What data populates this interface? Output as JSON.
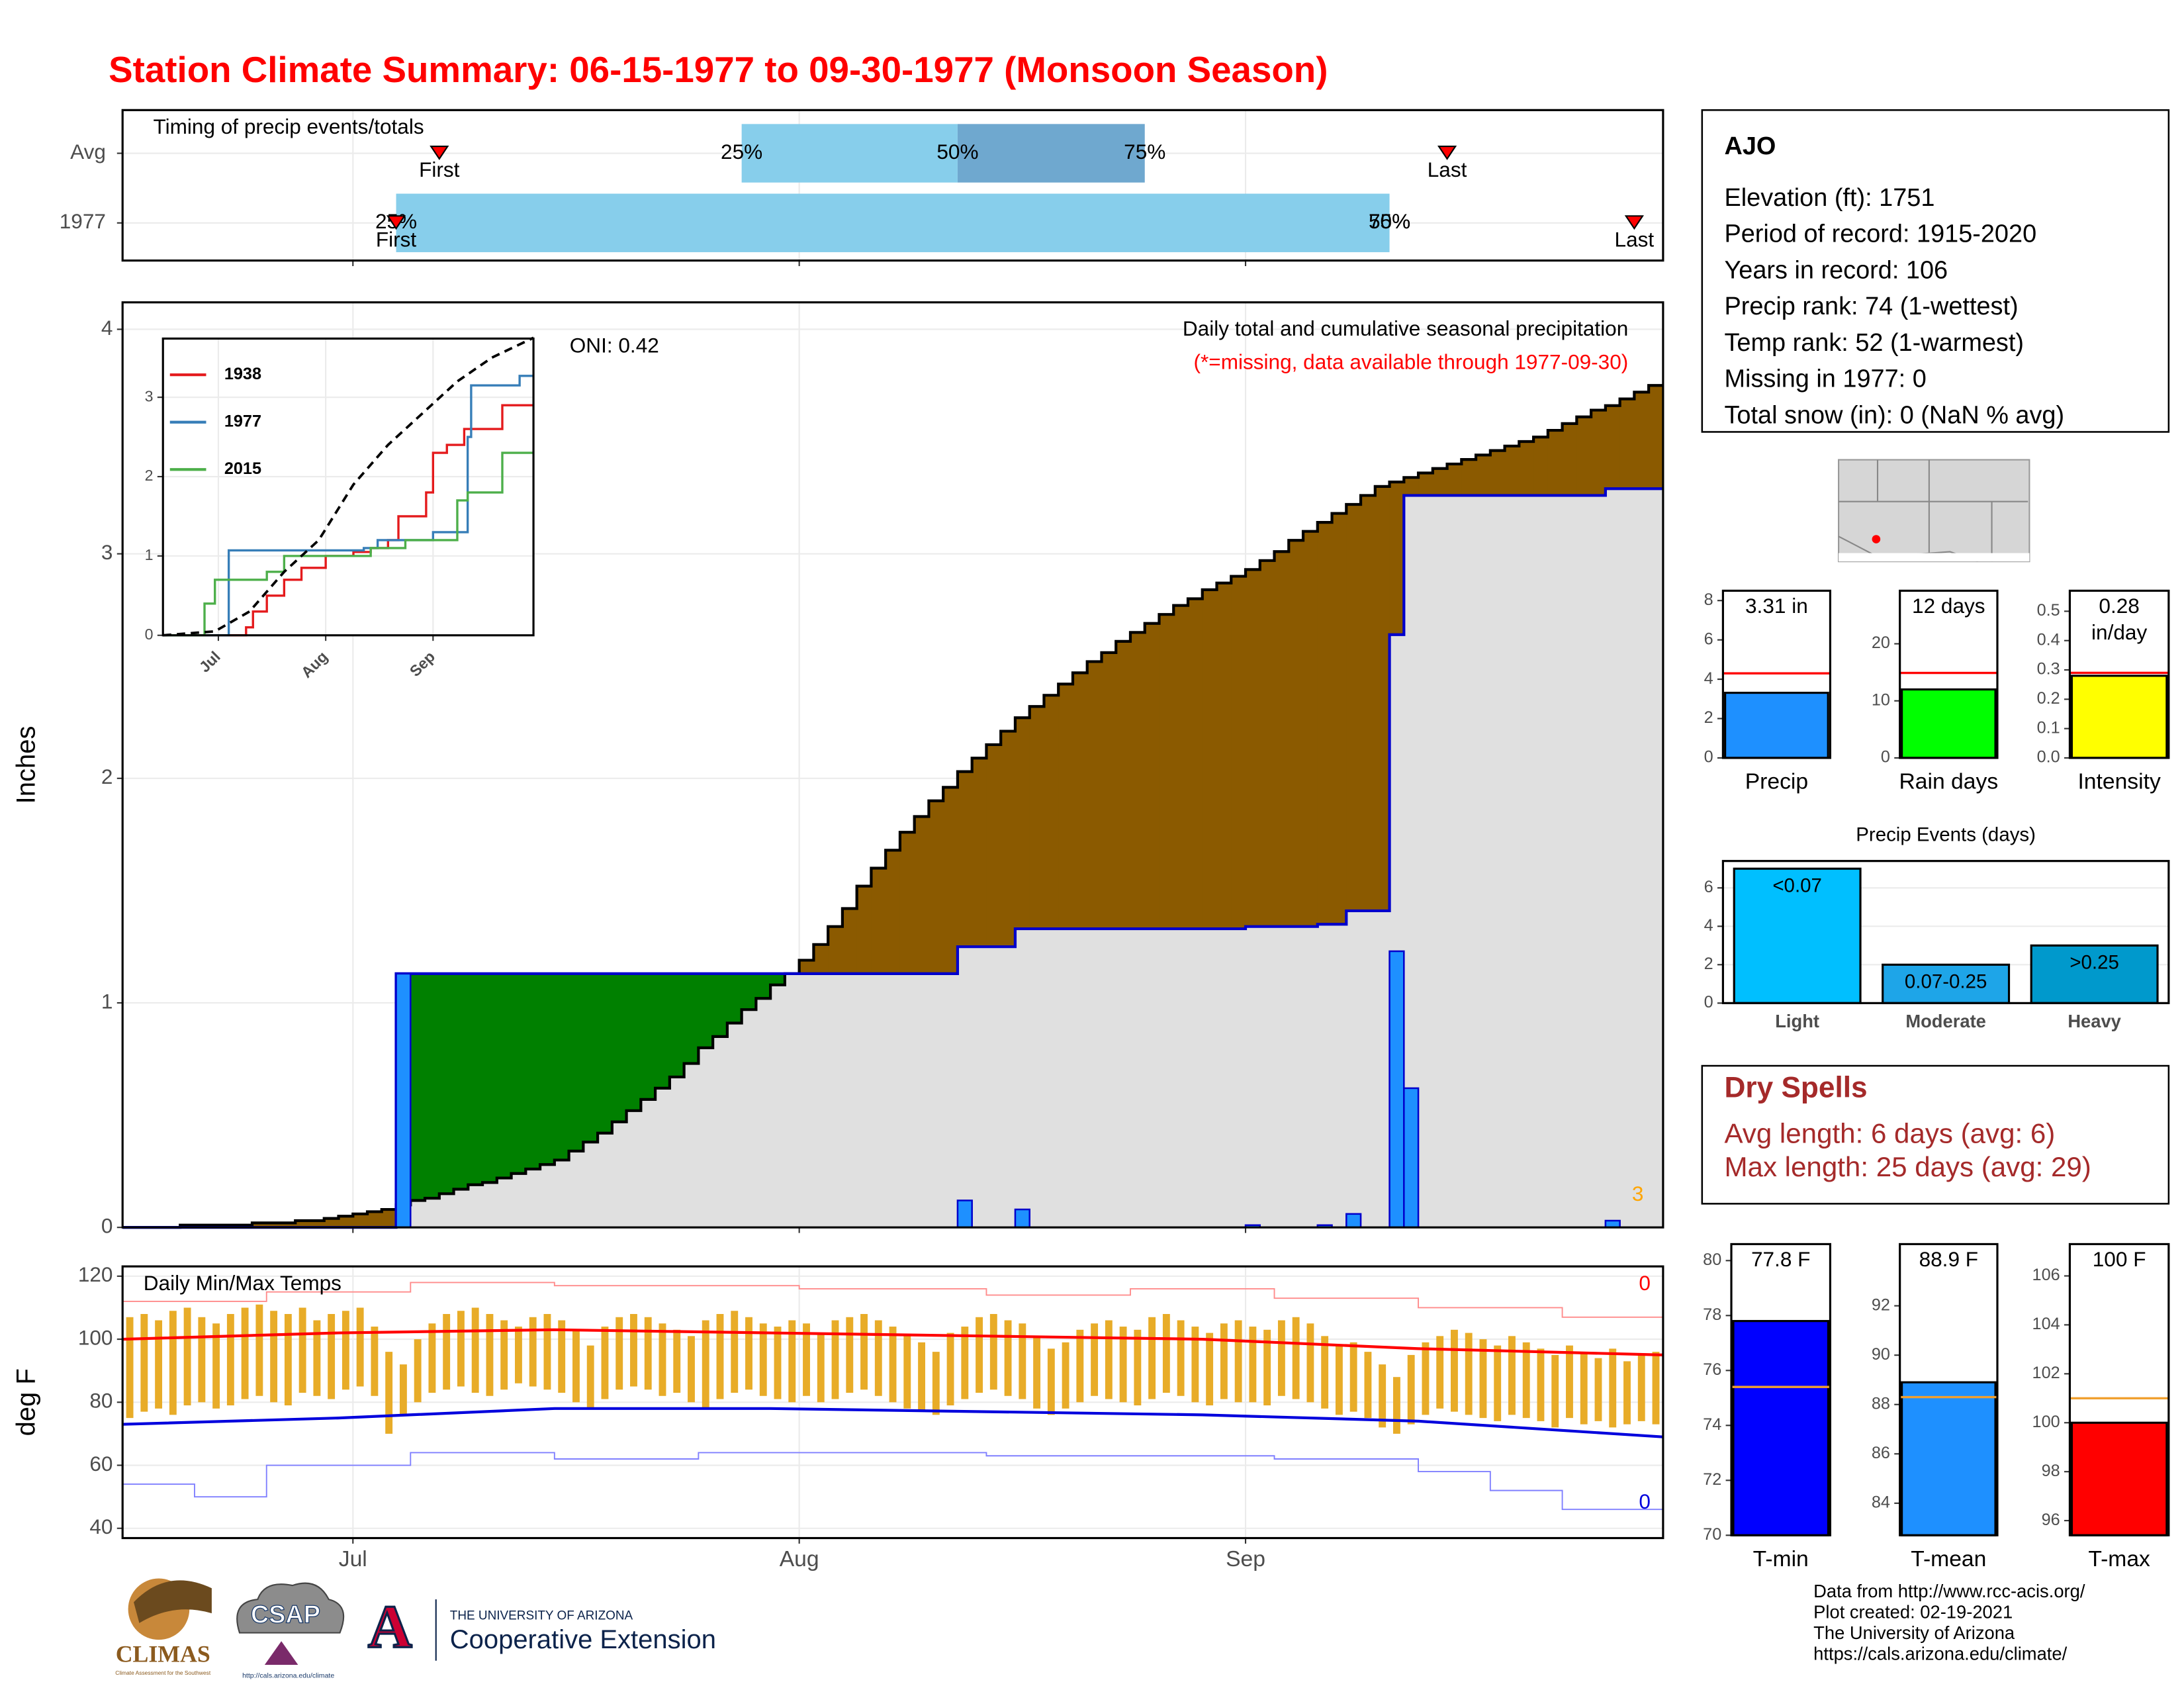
{
  "title": "Station Climate Summary: 06-15-1977 to 09-30-1977 (Monsoon Season)",
  "station_info": {
    "name": "AJO",
    "lines": [
      "Elevation (ft): 1751",
      "Period of record: 1915-2020",
      "Years in record: 106",
      "Precip rank: 74 (1-wettest)",
      "Temp rank: 52 (1-warmest)",
      "Missing in 1977: 0",
      "Total snow (in): 0 (NaN % avg)"
    ]
  },
  "dry_spells": {
    "title": "Dry Spells",
    "lines": [
      "Avg length: 6 days (avg: 6)",
      "Max length: 25 days (avg: 29)"
    ]
  },
  "footer": [
    "Data from http://www.rcc-acis.org/",
    "Plot created: 02-19-2021",
    "The University of Arizona",
    "https://cals.arizona.edu/climate/"
  ],
  "logos": {
    "climas": "CLIMAS",
    "climas_tagline": "Climate Assessment for the Southwest",
    "csap": "CSAP",
    "csap_url": "http://cals.arizona.edu/climate",
    "ua_letter": "A",
    "ua_line1": "THE UNIVERSITY OF ARIZONA",
    "ua_line2": "Cooperative Extension"
  },
  "chart_data": [
    {
      "type": "timeline",
      "title": "Timing of precip events/totals",
      "xlim": [
        0,
        107
      ],
      "xticks": [
        16,
        47,
        78
      ],
      "grid": true,
      "quantile_labels": [
        "25%",
        "50%",
        "75%"
      ],
      "marker_labels": [
        "First",
        "Last"
      ],
      "light_color": "#87ceeb",
      "dark_color": "#6fa8cf",
      "marker_color": "#ff0000",
      "series": [
        {
          "name": "Avg",
          "q25": 43,
          "q50": 58,
          "q75": 71,
          "first": 22,
          "last": 92
        },
        {
          "name": "1977",
          "q25": 19,
          "q50": 88,
          "q75": 88,
          "first": 19,
          "last": 105
        }
      ]
    },
    {
      "type": "cumulative",
      "title": "Daily total and cumulative seasonal precipitation",
      "subtitle": "(*=missing, data available through 1977-09-30)",
      "annotation": "ONI: 0.42",
      "y_label": "Inches",
      "missing_count": 3,
      "xlim": [
        0,
        107
      ],
      "xticks": [
        16,
        47,
        78
      ],
      "ylim": [
        0,
        4.12
      ],
      "yticks": [
        0,
        1,
        2,
        3,
        4
      ],
      "grid": true,
      "above_color": "#008000",
      "below_color": "#8b5a00",
      "fill_color": "#e0e0e0",
      "average": {
        "color": "#000000",
        "values": [
          0,
          0,
          0,
          0,
          0.01,
          0.01,
          0.01,
          0.01,
          0.01,
          0.02,
          0.02,
          0.02,
          0.03,
          0.03,
          0.04,
          0.05,
          0.06,
          0.07,
          0.08,
          0.1,
          0.12,
          0.13,
          0.15,
          0.17,
          0.19,
          0.2,
          0.22,
          0.24,
          0.26,
          0.28,
          0.3,
          0.34,
          0.38,
          0.42,
          0.47,
          0.52,
          0.57,
          0.62,
          0.67,
          0.73,
          0.8,
          0.85,
          0.91,
          0.97,
          1.02,
          1.08,
          1.13,
          1.19,
          1.26,
          1.34,
          1.42,
          1.52,
          1.6,
          1.68,
          1.76,
          1.83,
          1.9,
          1.96,
          2.03,
          2.09,
          2.15,
          2.21,
          2.27,
          2.32,
          2.37,
          2.42,
          2.47,
          2.52,
          2.56,
          2.61,
          2.65,
          2.69,
          2.73,
          2.77,
          2.8,
          2.84,
          2.87,
          2.9,
          2.93,
          2.97,
          3.01,
          3.06,
          3.1,
          3.14,
          3.18,
          3.22,
          3.26,
          3.3,
          3.32,
          3.34,
          3.36,
          3.38,
          3.4,
          3.42,
          3.44,
          3.46,
          3.48,
          3.5,
          3.52,
          3.55,
          3.58,
          3.61,
          3.64,
          3.66,
          3.69,
          3.72,
          3.75
        ]
      },
      "cumulative": {
        "color": "#0000cc",
        "values": [
          0,
          0,
          0,
          0,
          0,
          0,
          0,
          0,
          0,
          0,
          0,
          0,
          0,
          0,
          0,
          0,
          0,
          0,
          0,
          1.13,
          1.13,
          1.13,
          1.13,
          1.13,
          1.13,
          1.13,
          1.13,
          1.13,
          1.13,
          1.13,
          1.13,
          1.13,
          1.13,
          1.13,
          1.13,
          1.13,
          1.13,
          1.13,
          1.13,
          1.13,
          1.13,
          1.13,
          1.13,
          1.13,
          1.13,
          1.13,
          1.13,
          1.13,
          1.13,
          1.13,
          1.13,
          1.13,
          1.13,
          1.13,
          1.13,
          1.13,
          1.13,
          1.13,
          1.25,
          1.25,
          1.25,
          1.25,
          1.33,
          1.33,
          1.33,
          1.33,
          1.33,
          1.33,
          1.33,
          1.33,
          1.33,
          1.33,
          1.33,
          1.33,
          1.33,
          1.33,
          1.33,
          1.33,
          1.34,
          1.34,
          1.34,
          1.34,
          1.34,
          1.35,
          1.35,
          1.41,
          1.41,
          1.41,
          2.64,
          3.26,
          3.26,
          3.26,
          3.26,
          3.26,
          3.26,
          3.26,
          3.26,
          3.26,
          3.26,
          3.26,
          3.26,
          3.26,
          3.26,
          3.29,
          3.29,
          3.29,
          3.29
        ]
      },
      "daily": {
        "color": "#1e90ff",
        "values": [
          0,
          0,
          0,
          0,
          0,
          0,
          0,
          0,
          0,
          0,
          0,
          0,
          0,
          0,
          0,
          0,
          0,
          0,
          0,
          1.13,
          0,
          0,
          0,
          0,
          0,
          0,
          0,
          0,
          0,
          0,
          0,
          0,
          0,
          0,
          0,
          0,
          0,
          0,
          0,
          0,
          0,
          0,
          0,
          0,
          0,
          0,
          0,
          0,
          0,
          0,
          0,
          0,
          0,
          0,
          0,
          0,
          0,
          0,
          0.12,
          0,
          0,
          0,
          0.08,
          0,
          0,
          0,
          0,
          0,
          0,
          0,
          0,
          0,
          0,
          0,
          0,
          0,
          0,
          0,
          0.01,
          0,
          0,
          0,
          0,
          0.01,
          0,
          0.06,
          0,
          0,
          1.23,
          0.62,
          0,
          0,
          0,
          0,
          0,
          0,
          0,
          0,
          0,
          0,
          0,
          0,
          0,
          0.03,
          0,
          0,
          0
        ]
      }
    },
    {
      "type": "line",
      "xlim": [
        0,
        107
      ],
      "xticks": [
        {
          "value": 16,
          "label": "Jul"
        },
        {
          "value": 47,
          "label": "Aug"
        },
        {
          "value": 78,
          "label": "Sep"
        }
      ],
      "ylim": [
        0,
        3.74
      ],
      "yticks": [
        0,
        1,
        2,
        3
      ],
      "grid": true,
      "series": [
        {
          "name": "1938",
          "color": "#e41a1c",
          "x": [
            0,
            24,
            26,
            30,
            35,
            40,
            47,
            55,
            60,
            65,
            68,
            73,
            76,
            78,
            82,
            87,
            92,
            98,
            107
          ],
          "values": [
            0,
            0.1,
            0.3,
            0.5,
            0.7,
            0.85,
            1.0,
            1.05,
            1.1,
            1.2,
            1.5,
            1.5,
            1.8,
            2.3,
            2.4,
            2.6,
            2.6,
            2.9,
            2.9
          ]
        },
        {
          "name": "1977",
          "color": "#377eb8",
          "x": [
            0,
            19,
            58,
            62,
            78,
            85,
            88,
            89,
            103,
            107
          ],
          "values": [
            0,
            1.07,
            1.1,
            1.2,
            1.3,
            1.3,
            2.5,
            3.15,
            3.27,
            3.27
          ]
        },
        {
          "name": "2015",
          "color": "#4daf4a",
          "x": [
            0,
            12,
            15,
            27,
            30,
            35,
            45,
            60,
            70,
            82,
            85,
            88,
            92,
            98,
            107
          ],
          "values": [
            0,
            0.4,
            0.7,
            0.7,
            0.8,
            1.0,
            1.0,
            1.1,
            1.2,
            1.2,
            1.7,
            1.8,
            1.8,
            2.3,
            2.3
          ]
        }
      ],
      "average": {
        "color": "#000000",
        "x": [
          0,
          15,
          25,
          35,
          45,
          55,
          65,
          75,
          85,
          95,
          107
        ],
        "values": [
          0,
          0.05,
          0.3,
          0.8,
          1.2,
          1.9,
          2.4,
          2.8,
          3.2,
          3.5,
          3.75
        ]
      }
    },
    {
      "type": "range",
      "title": "Daily Min/Max Temps",
      "y_label": "deg F",
      "xlim": [
        0,
        107
      ],
      "xticks": [
        {
          "value": 16,
          "label": "Jul"
        },
        {
          "value": 47,
          "label": "Aug"
        },
        {
          "value": 78,
          "label": "Sep"
        }
      ],
      "ylim": [
        36.9,
        123.1
      ],
      "yticks": [
        40,
        60,
        80,
        100,
        120
      ],
      "grid": true,
      "record_max_count": 0,
      "record_min_count": 0,
      "daily": {
        "color": "#e8ac28",
        "max": [
          107,
          108,
          106,
          109,
          110,
          107,
          105,
          108,
          110,
          111,
          109,
          108,
          110,
          106,
          108,
          109,
          110,
          104,
          96,
          92,
          100,
          105,
          108,
          109,
          110,
          108,
          106,
          104,
          107,
          108,
          106,
          103,
          98,
          104,
          107,
          108,
          107,
          105,
          103,
          101,
          106,
          108,
          109,
          107,
          105,
          104,
          106,
          105,
          102,
          106,
          107,
          108,
          106,
          104,
          101,
          99,
          96,
          102,
          104,
          107,
          108,
          106,
          105,
          101,
          97,
          99,
          103,
          105,
          106,
          104,
          103,
          107,
          108,
          106,
          104,
          102,
          105,
          106,
          104,
          103,
          106,
          107,
          105,
          101,
          98,
          99,
          96,
          92,
          88,
          95,
          99,
          101,
          103,
          102,
          100,
          98,
          101,
          99,
          97,
          95,
          98,
          96,
          94,
          97,
          93,
          95,
          96
        ],
        "min": [
          75,
          77,
          78,
          76,
          79,
          80,
          78,
          79,
          81,
          82,
          80,
          79,
          83,
          82,
          81,
          84,
          85,
          82,
          70,
          76,
          80,
          83,
          84,
          85,
          83,
          82,
          84,
          86,
          85,
          84,
          83,
          80,
          78,
          81,
          84,
          85,
          84,
          82,
          83,
          80,
          78,
          81,
          83,
          84,
          82,
          81,
          80,
          82,
          80,
          81,
          83,
          84,
          82,
          80,
          78,
          77,
          76,
          79,
          81,
          83,
          84,
          82,
          81,
          78,
          76,
          78,
          80,
          82,
          81,
          80,
          79,
          81,
          83,
          82,
          80,
          79,
          81,
          80,
          80,
          79,
          82,
          81,
          80,
          78,
          76,
          77,
          75,
          72,
          70,
          73,
          76,
          78,
          77,
          76,
          75,
          74,
          76,
          75,
          74,
          72,
          75,
          73,
          74,
          72,
          73,
          74,
          73
        ]
      },
      "avg_max": {
        "color": "#ff0000",
        "x": [
          0,
          15,
          30,
          45,
          60,
          75,
          90,
          107
        ],
        "values": [
          100,
          102,
          103,
          102,
          101,
          100,
          97,
          95
        ]
      },
      "avg_min": {
        "color": "#0000dd",
        "x": [
          0,
          15,
          30,
          45,
          60,
          75,
          90,
          107
        ],
        "values": [
          73,
          75,
          78,
          78,
          77,
          76,
          74,
          69
        ]
      },
      "record_max": {
        "color": "#ff8c8c",
        "x": [
          0,
          10,
          20,
          30,
          47,
          60,
          70,
          80,
          90,
          100,
          107
        ],
        "values": [
          112,
          115,
          118,
          117,
          116,
          114,
          116,
          113,
          110,
          107,
          106
        ]
      },
      "record_min": {
        "color": "#8080ff",
        "x": [
          0,
          5,
          10,
          20,
          30,
          40,
          50,
          60,
          70,
          80,
          90,
          95,
          100,
          107
        ],
        "values": [
          54,
          50,
          60,
          64,
          62,
          64,
          64,
          63,
          63,
          62,
          58,
          52,
          46,
          50
        ]
      }
    },
    {
      "type": "bar",
      "categories": [
        "Precip"
      ],
      "values": [
        3.31
      ],
      "value_labels": [
        "3.31 in"
      ],
      "color": "#1e90ff",
      "normal": 4.3,
      "normal_color": "#ff0000",
      "ylim": [
        0,
        8.5
      ],
      "yticks": [
        0,
        2,
        4,
        6,
        8
      ]
    },
    {
      "type": "bar",
      "categories": [
        "Rain days"
      ],
      "values": [
        12
      ],
      "value_labels": [
        "12 days"
      ],
      "color": "#00ff00",
      "normal": 14.9,
      "normal_color": "#ff0000",
      "ylim": [
        0,
        29.3
      ],
      "yticks": [
        0,
        10,
        20
      ]
    },
    {
      "type": "bar",
      "categories": [
        "Intensity"
      ],
      "values": [
        0.28
      ],
      "value_labels": [
        "0.28 in/day"
      ],
      "color": "#ffff00",
      "normal": 0.29,
      "normal_color": "#ff0000",
      "ylim": [
        0,
        0.57
      ],
      "yticks": [
        {
          "value": 0,
          "label": "0.0"
        },
        {
          "value": 0.1,
          "label": "0.1"
        },
        {
          "value": 0.2,
          "label": "0.2"
        },
        {
          "value": 0.3,
          "label": "0.3"
        },
        {
          "value": 0.4,
          "label": "0.4"
        },
        {
          "value": 0.5,
          "label": "0.5"
        }
      ]
    },
    {
      "type": "bar",
      "title": "Precip Events (days)",
      "categories": [
        "Light",
        "Moderate",
        "Heavy"
      ],
      "values": [
        7,
        2,
        3
      ],
      "bar_labels": [
        "<0.07",
        "0.07-0.25",
        ">0.25"
      ],
      "colors": [
        "#00bfff",
        "#1ea5e8",
        "#0099cc"
      ],
      "ylim": [
        0,
        7.4
      ],
      "yticks": [
        0,
        2,
        4,
        6
      ],
      "grid": true
    },
    {
      "type": "bar",
      "categories": [
        "T-min"
      ],
      "values": [
        77.8
      ],
      "value_labels": [
        "77.8 F"
      ],
      "color": "#0000ff",
      "normal": 75.4,
      "normal_color": "#f0a030",
      "ylim": [
        70,
        80.6
      ],
      "yticks": [
        70,
        72,
        74,
        76,
        78,
        80
      ]
    },
    {
      "type": "bar",
      "categories": [
        "T-mean"
      ],
      "values": [
        88.9
      ],
      "value_labels": [
        "88.9 F"
      ],
      "color": "#1e90ff",
      "normal": 88.3,
      "normal_color": "#f0a030",
      "ylim": [
        82.7,
        94.5
      ],
      "yticks": [
        84,
        86,
        88,
        90,
        92
      ]
    },
    {
      "type": "bar",
      "categories": [
        "T-max"
      ],
      "values": [
        100
      ],
      "value_labels": [
        "100 F"
      ],
      "color": "#ff0000",
      "normal": 101,
      "normal_color": "#f0a030",
      "ylim": [
        95.4,
        107.3
      ],
      "yticks": [
        96,
        98,
        100,
        102,
        104,
        106
      ]
    }
  ]
}
